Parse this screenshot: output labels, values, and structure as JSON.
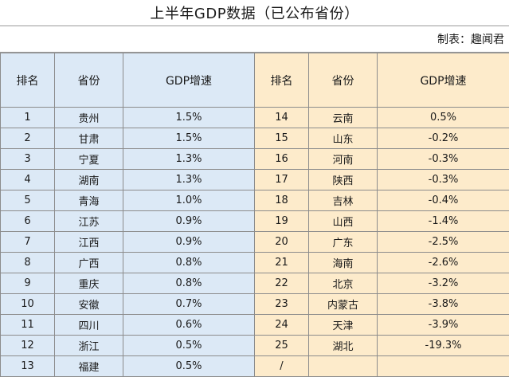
{
  "title": "上半年GDP数据（已公布省份）",
  "author": "制表：趣闻君",
  "headers": {
    "left": {
      "rank": "排名",
      "province": "省份",
      "gdp": "GDP增速"
    },
    "right": {
      "rank": "排名",
      "province": "省份",
      "gdp": "GDP增速"
    }
  },
  "colors": {
    "left_bg": "#dce9f6",
    "right_bg": "#fdebcb"
  },
  "rows": [
    {
      "l_rank": "1",
      "l_prov": "贵州",
      "l_gdp": "1.5%",
      "r_rank": "14",
      "r_prov": "云南",
      "r_gdp": "0.5%"
    },
    {
      "l_rank": "2",
      "l_prov": "甘肃",
      "l_gdp": "1.5%",
      "r_rank": "15",
      "r_prov": "山东",
      "r_gdp": "-0.2%"
    },
    {
      "l_rank": "3",
      "l_prov": "宁夏",
      "l_gdp": "1.3%",
      "r_rank": "16",
      "r_prov": "河南",
      "r_gdp": "-0.3%"
    },
    {
      "l_rank": "4",
      "l_prov": "湖南",
      "l_gdp": "1.3%",
      "r_rank": "17",
      "r_prov": "陕西",
      "r_gdp": "-0.3%"
    },
    {
      "l_rank": "5",
      "l_prov": "青海",
      "l_gdp": "1.0%",
      "r_rank": "18",
      "r_prov": "吉林",
      "r_gdp": "-0.4%"
    },
    {
      "l_rank": "6",
      "l_prov": "江苏",
      "l_gdp": "0.9%",
      "r_rank": "19",
      "r_prov": "山西",
      "r_gdp": "-1.4%"
    },
    {
      "l_rank": "7",
      "l_prov": "江西",
      "l_gdp": "0.9%",
      "r_rank": "20",
      "r_prov": "广东",
      "r_gdp": "-2.5%"
    },
    {
      "l_rank": "8",
      "l_prov": "广西",
      "l_gdp": "0.8%",
      "r_rank": "21",
      "r_prov": "海南",
      "r_gdp": "-2.6%"
    },
    {
      "l_rank": "9",
      "l_prov": "重庆",
      "l_gdp": "0.8%",
      "r_rank": "22",
      "r_prov": "北京",
      "r_gdp": "-3.2%"
    },
    {
      "l_rank": "10",
      "l_prov": "安徽",
      "l_gdp": "0.7%",
      "r_rank": "23",
      "r_prov": "内蒙古",
      "r_gdp": "-3.8%"
    },
    {
      "l_rank": "11",
      "l_prov": "四川",
      "l_gdp": "0.6%",
      "r_rank": "24",
      "r_prov": "天津",
      "r_gdp": "-3.9%"
    },
    {
      "l_rank": "12",
      "l_prov": "浙江",
      "l_gdp": "0.5%",
      "r_rank": "25",
      "r_prov": "湖北",
      "r_gdp": "-19.3%"
    },
    {
      "l_rank": "13",
      "l_prov": "福建",
      "l_gdp": "0.5%",
      "r_rank": "/",
      "r_prov": "",
      "r_gdp": ""
    }
  ]
}
